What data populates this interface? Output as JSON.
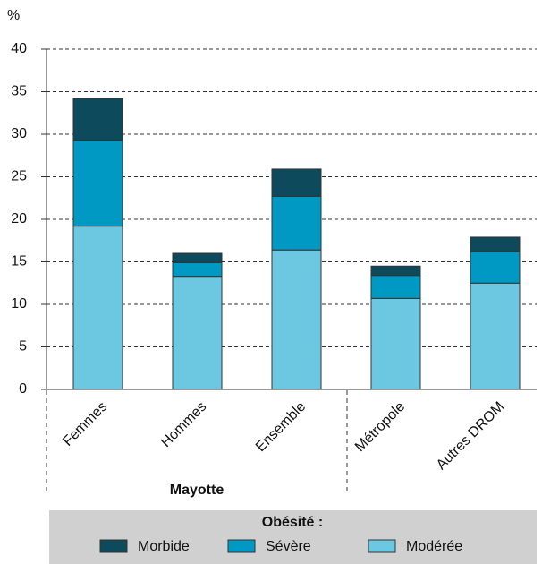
{
  "chart_data": {
    "type": "stacked_bar",
    "ylabel": "%",
    "categories": [
      "Femmes",
      "Hommes",
      "Ensemble",
      "Métropole",
      "Autres DROM"
    ],
    "group_label": "Mayotte",
    "legend_title": "Obésité :",
    "series": [
      {
        "name": "Modérée",
        "color": "#6cc8e0",
        "values": [
          19.2,
          13.3,
          16.4,
          10.7,
          12.5
        ]
      },
      {
        "name": "Sévère",
        "color": "#0099c4",
        "values": [
          10.1,
          1.6,
          6.3,
          2.7,
          3.7
        ]
      },
      {
        "name": "Morbide",
        "color": "#0d4a5c",
        "values": [
          4.9,
          1.1,
          3.2,
          1.1,
          1.7
        ]
      }
    ],
    "ylim": [
      0,
      40
    ],
    "yticks": [
      0,
      5,
      10,
      15,
      20,
      25,
      30,
      35,
      40
    ],
    "grid": true
  }
}
